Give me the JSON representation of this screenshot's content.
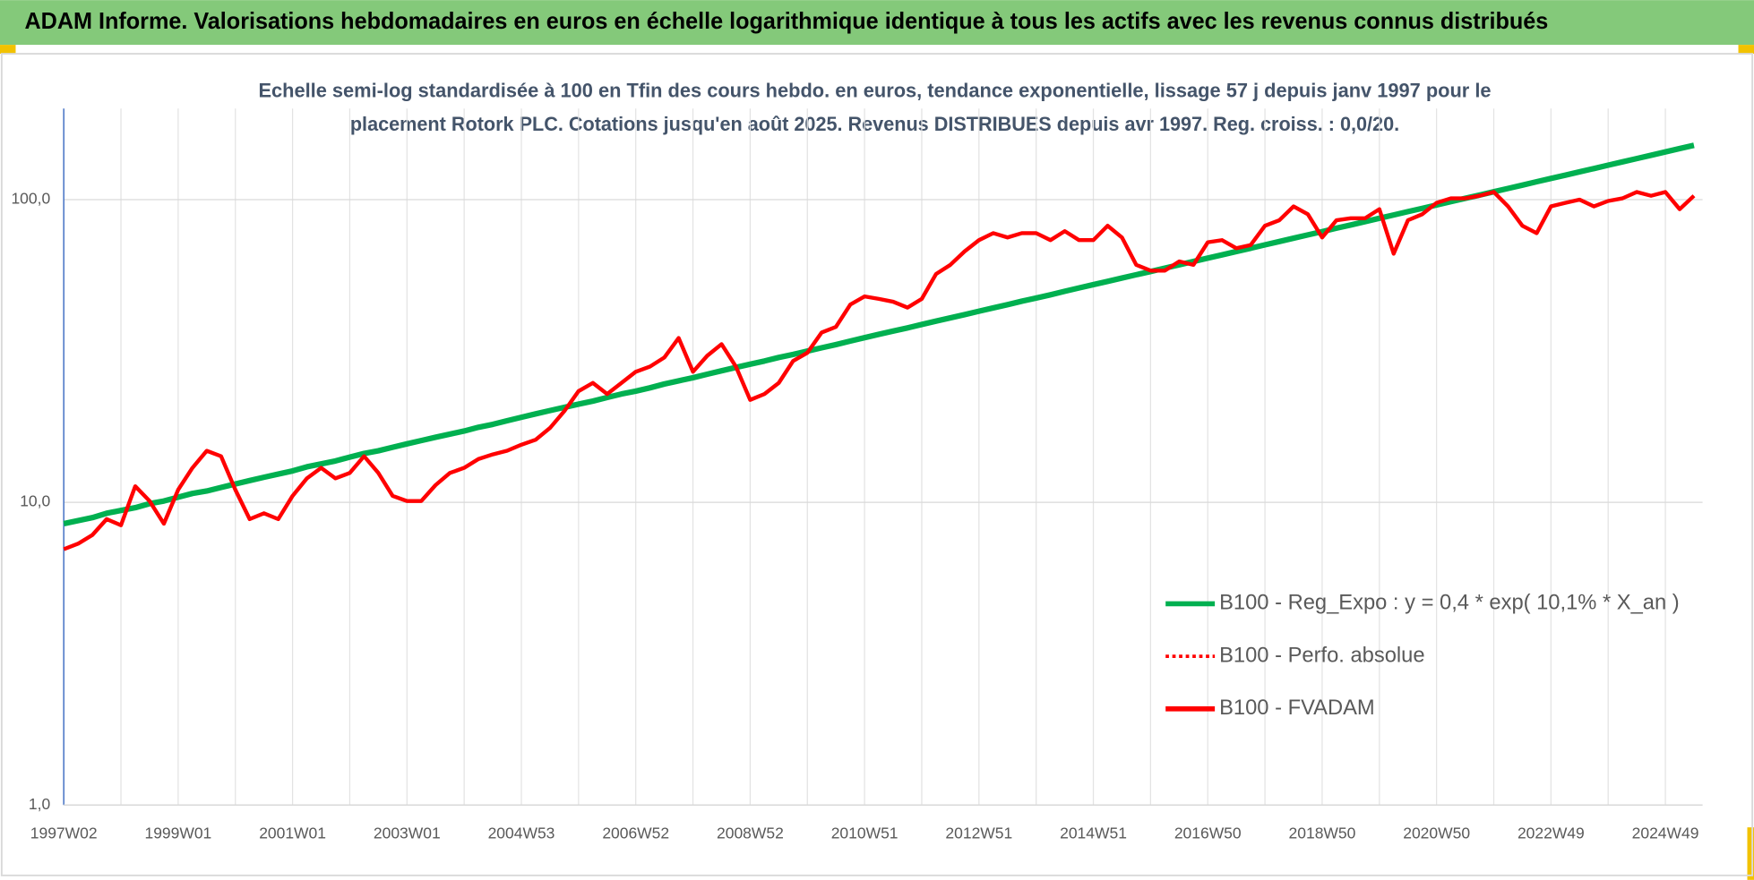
{
  "chart_data": {
    "type": "line",
    "title": "ADAM Informe. Valorisations hebdomadaires en euros en échelle logarithmique identique à tous les actifs avec les revenus connus distribués",
    "subtitle": [
      "Echelle semi-log standardisée à 100 en Tfin des cours hebdo. en euros, tendance exponentielle, lissage 57 j depuis janv 1997 pour le",
      "placement Rotork PLC. Cotations jusqu'en août 2025. Revenus DISTRIBUES depuis avr 1997. Reg. croiss. : 0,0/20."
    ],
    "log_scale": true,
    "grid": true,
    "legend": "right",
    "ylim": [
      1,
      200
    ],
    "yticks": [
      {
        "value": 1,
        "label": "1,0"
      },
      {
        "value": 10,
        "label": "10,0"
      },
      {
        "value": 100,
        "label": "100,0"
      }
    ],
    "categories": [
      "1997W02",
      null,
      null,
      null,
      null,
      null,
      null,
      null,
      "1999W01",
      null,
      null,
      null,
      null,
      null,
      null,
      null,
      "2001W01",
      null,
      null,
      null,
      null,
      null,
      null,
      null,
      "2003W01",
      null,
      null,
      null,
      null,
      null,
      null,
      null,
      "2004W53",
      null,
      null,
      null,
      null,
      null,
      null,
      null,
      "2006W52",
      null,
      null,
      null,
      null,
      null,
      null,
      null,
      "2008W52",
      null,
      null,
      null,
      null,
      null,
      null,
      null,
      "2010W51",
      null,
      null,
      null,
      null,
      null,
      null,
      null,
      "2012W51",
      null,
      null,
      null,
      null,
      null,
      null,
      null,
      "2014W51",
      null,
      null,
      null,
      null,
      null,
      null,
      null,
      "2016W50",
      null,
      null,
      null,
      null,
      null,
      null,
      null,
      "2018W50",
      null,
      null,
      null,
      null,
      null,
      null,
      null,
      "2020W50",
      null,
      null,
      null,
      null,
      null,
      null,
      null,
      "2022W49",
      null,
      null,
      null,
      null,
      null,
      null,
      null,
      "2024W49",
      null,
      null
    ],
    "series": [
      {
        "name": "B100 - Reg_Expo : y = 0,4 * exp( 10,1% *  X_an )",
        "color": "#00b050",
        "width": 5,
        "values": [
          8.5,
          8.7,
          8.9,
          9.2,
          9.4,
          9.6,
          9.9,
          10.1,
          10.4,
          10.7,
          10.9,
          11.2,
          11.5,
          11.8,
          12.1,
          12.4,
          12.7,
          13.1,
          13.4,
          13.7,
          14.1,
          14.5,
          14.8,
          15.2,
          15.6,
          16.0,
          16.4,
          16.8,
          17.2,
          17.7,
          18.1,
          18.6,
          19.1,
          19.6,
          20.1,
          20.6,
          21.1,
          21.6,
          22.2,
          22.8,
          23.3,
          23.9,
          24.6,
          25.2,
          25.8,
          26.5,
          27.2,
          27.9,
          28.6,
          29.3,
          30.1,
          30.8,
          31.6,
          32.4,
          33.2,
          34.1,
          35.0,
          35.9,
          36.8,
          37.7,
          38.7,
          39.7,
          40.7,
          41.7,
          42.8,
          43.9,
          45.0,
          46.2,
          47.3,
          48.5,
          49.8,
          51.1,
          52.4,
          53.7,
          55.1,
          56.5,
          57.9,
          59.4,
          60.9,
          62.5,
          64.1,
          65.7,
          67.4,
          69.1,
          70.9,
          72.7,
          74.6,
          76.5,
          78.4,
          80.5,
          82.5,
          84.6,
          86.8,
          89.0,
          91.3,
          93.6,
          96.0,
          98.5,
          101.0,
          103.5,
          106.2,
          108.9,
          111.7,
          114.6,
          117.5,
          120.5,
          123.6,
          126.7,
          130.0,
          133.3,
          136.7,
          140.2,
          143.8,
          147.5,
          151.2
        ]
      },
      {
        "name": "B100 - Perfo. absolue",
        "color": "#ff0000",
        "dash": "dotted"
      },
      {
        "name": "B100 - FVADAM",
        "color": "#ff0000",
        "width": 3.5,
        "values": [
          7.0,
          7.3,
          7.8,
          8.8,
          8.4,
          11.3,
          10.1,
          8.5,
          11.0,
          13.0,
          14.8,
          14.2,
          11.0,
          8.8,
          9.2,
          8.8,
          10.5,
          12.0,
          13.0,
          12.0,
          12.5,
          14.2,
          12.5,
          10.5,
          10.1,
          10.1,
          11.4,
          12.5,
          13.0,
          13.9,
          14.4,
          14.8,
          15.5,
          16.1,
          17.6,
          20.0,
          23.3,
          24.8,
          22.8,
          24.8,
          27.0,
          28.1,
          30.1,
          34.9,
          27.0,
          30.5,
          33.3,
          28.1,
          21.8,
          22.8,
          24.8,
          29.3,
          31.2,
          36.4,
          38.0,
          45.0,
          47.9,
          47.0,
          46.0,
          44.0,
          47.0,
          56.8,
          60.9,
          67.5,
          73.5,
          77.5,
          75.0,
          77.5,
          77.5,
          73.5,
          78.7,
          73.5,
          73.5,
          82.0,
          75.0,
          60.9,
          58.3,
          58.3,
          62.5,
          60.9,
          72.3,
          73.5,
          69.1,
          70.8,
          82.0,
          85.5,
          95.0,
          89.5,
          75.0,
          85.5,
          86.8,
          86.8,
          93.0,
          66.3,
          85.5,
          89.5,
          97.6,
          101.0,
          101.0,
          103.0,
          106.0,
          95.0,
          82.0,
          77.5,
          95.0,
          97.6,
          100.0,
          95.0,
          99.0,
          101.0,
          106.0,
          103.0,
          106.0,
          93.0,
          103.0
        ]
      }
    ]
  }
}
